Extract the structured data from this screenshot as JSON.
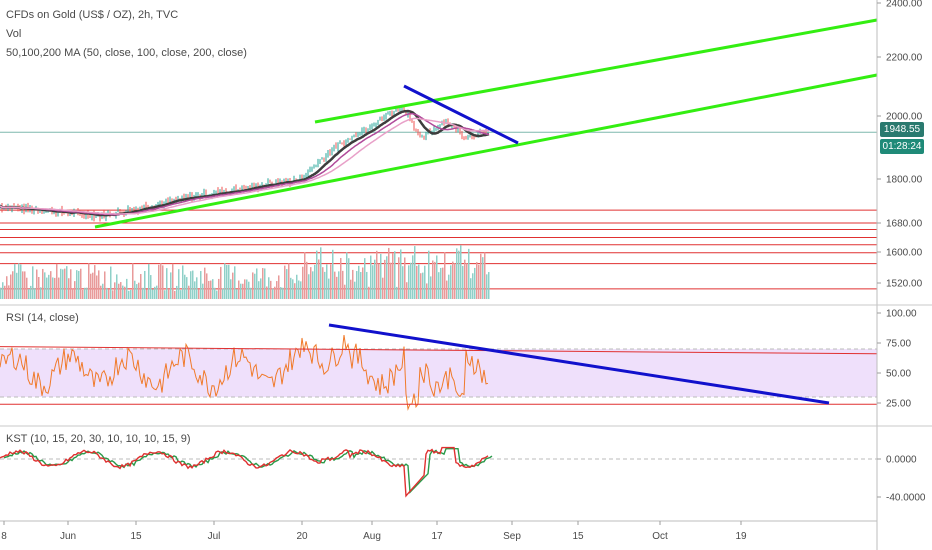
{
  "legend": {
    "title": "CFDs on Gold (US$ / OZ), 2h, TVC",
    "volume": "Vol",
    "ma": "50,100,200 MA (50, close, 100, close, 200, close)",
    "rsi": "RSI (14, close)",
    "kst": "KST (10, 15, 20, 30, 10, 10, 10, 15, 9)"
  },
  "tags": {
    "last_price": "1948.55",
    "countdown": "01:28:24"
  },
  "colors": {
    "trend_green": "#33ee11",
    "trend_blue": "#1111cc",
    "support_red": "#e03030",
    "last_price_tag": "#2a7a6f",
    "countdown_tag": "#1f8a78",
    "rsi_band": "#efe0fb",
    "rsi_line": "#f07a2a",
    "kst_line": "#e03030",
    "kst_signal": "#2a9a4a"
  },
  "price_axis": {
    "labels": [
      "2400.00",
      "2200.00",
      "2000.00",
      "1800.00",
      "1680.00",
      "1600.00",
      "1520.00"
    ],
    "values": [
      2400,
      2200,
      2000,
      1800,
      1680,
      1600,
      1520
    ]
  },
  "rsi_axis": {
    "labels": [
      "100.00",
      "75.00",
      "50.00",
      "25.00"
    ],
    "values": [
      100,
      75,
      50,
      25
    ]
  },
  "kst_axis": {
    "labels": [
      "0.0000",
      "-40.0000"
    ],
    "values": [
      0,
      -40
    ]
  },
  "time_axis": {
    "labels": [
      "8",
      "Jun",
      "15",
      "Jul",
      "20",
      "Aug",
      "17",
      "Sep",
      "15",
      "Oct",
      "19"
    ]
  },
  "support_levels": [
    1715,
    1680,
    1662,
    1640,
    1620,
    1598,
    1570,
    1505
  ]
}
